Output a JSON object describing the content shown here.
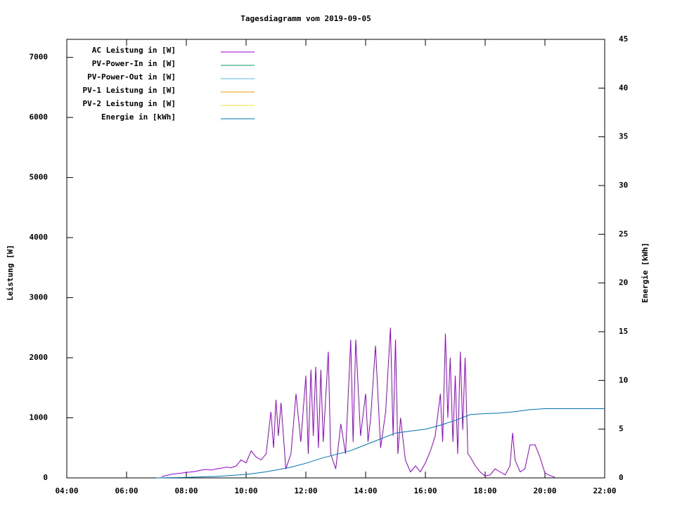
{
  "chart_data": {
    "type": "line",
    "title": "Tagesdiagramm vom 2019-09-05",
    "y_label": "Leistung [W]",
    "y2_label": "Energie [kWh]",
    "legend": "top left",
    "grid": false,
    "xlim": [
      4,
      22
    ],
    "xticks": [
      {
        "value": 4,
        "label": "04:00"
      },
      {
        "value": 6,
        "label": "06:00"
      },
      {
        "value": 8,
        "label": "08:00"
      },
      {
        "value": 10,
        "label": "10:00"
      },
      {
        "value": 12,
        "label": "12:00"
      },
      {
        "value": 14,
        "label": "14:00"
      },
      {
        "value": 16,
        "label": "16:00"
      },
      {
        "value": 18,
        "label": "18:00"
      },
      {
        "value": 20,
        "label": "20:00"
      },
      {
        "value": 22,
        "label": "22:00"
      }
    ],
    "ylim": [
      0,
      7300
    ],
    "yticks": [
      0,
      1000,
      2000,
      3000,
      4000,
      5000,
      6000,
      7000
    ],
    "y2lim": [
      0,
      45
    ],
    "y2ticks": [
      0,
      5,
      10,
      15,
      20,
      25,
      30,
      35,
      40,
      45
    ],
    "series": [
      {
        "name": "AC Leistung in [W]",
        "color": "#9400d3",
        "x": [
          7.17,
          7.33,
          7.5,
          7.67,
          7.83,
          8.0,
          8.17,
          8.33,
          8.5,
          8.67,
          8.83,
          9.0,
          9.17,
          9.33,
          9.5,
          9.67,
          9.83,
          10.0,
          10.17,
          10.33,
          10.5,
          10.67,
          10.83,
          10.92,
          11.0,
          11.08,
          11.17,
          11.33,
          11.5,
          11.67,
          11.83,
          12.0,
          12.08,
          12.17,
          12.25,
          12.33,
          12.42,
          12.5,
          12.58,
          12.75,
          12.83,
          13.0,
          13.17,
          13.33,
          13.5,
          13.58,
          13.67,
          13.83,
          14.0,
          14.08,
          14.17,
          14.33,
          14.5,
          14.67,
          14.83,
          14.92,
          15.0,
          15.08,
          15.17,
          15.33,
          15.5,
          15.67,
          15.83,
          16.0,
          16.17,
          16.33,
          16.5,
          16.58,
          16.67,
          16.75,
          16.83,
          16.92,
          17.0,
          17.08,
          17.17,
          17.25,
          17.33,
          17.42,
          17.5,
          17.67,
          17.83,
          18.0,
          18.17,
          18.33,
          18.5,
          18.67,
          18.83,
          18.92,
          19.0,
          19.17,
          19.33,
          19.5,
          19.67,
          19.83,
          20.0,
          20.17,
          20.33
        ],
        "values": [
          20,
          40,
          60,
          70,
          80,
          90,
          100,
          110,
          130,
          140,
          130,
          150,
          160,
          180,
          170,
          200,
          300,
          250,
          450,
          350,
          300,
          400,
          1100,
          500,
          1300,
          700,
          1250,
          150,
          400,
          1400,
          600,
          1700,
          400,
          1800,
          700,
          1850,
          500,
          1800,
          600,
          2100,
          400,
          150,
          900,
          400,
          2300,
          600,
          2300,
          700,
          1400,
          600,
          1000,
          2200,
          500,
          1100,
          2500,
          700,
          2300,
          400,
          1000,
          300,
          100,
          200,
          100,
          250,
          450,
          700,
          1400,
          600,
          2400,
          1000,
          2000,
          600,
          1700,
          400,
          2100,
          800,
          2000,
          400,
          350,
          200,
          100,
          30,
          50,
          150,
          100,
          50,
          200,
          750,
          300,
          100,
          150,
          550,
          550,
          350,
          80,
          40,
          10
        ]
      },
      {
        "name": "PV-Power-In in [W]",
        "color": "#009e73",
        "x": [],
        "values": []
      },
      {
        "name": "PV-Power-Out in [W]",
        "color": "#56b4e9",
        "x": [],
        "values": []
      },
      {
        "name": "PV-1 Leistung in [W]",
        "color": "#e69f00",
        "x": [],
        "values": []
      },
      {
        "name": "PV-2 Leistung in [W]",
        "color": "#f0e442",
        "x": [],
        "values": []
      },
      {
        "name": "Energie in [kWh]",
        "color": "#0072b2",
        "axis": "y2",
        "x": [
          7.0,
          8.0,
          9.0,
          10.0,
          10.5,
          11.0,
          11.5,
          12.0,
          12.5,
          13.0,
          13.5,
          14.0,
          14.5,
          15.0,
          15.5,
          16.0,
          16.5,
          17.0,
          17.5,
          18.0,
          18.5,
          19.0,
          19.5,
          20.0,
          21.0,
          22.0
        ],
        "values": [
          0,
          0.05,
          0.15,
          0.35,
          0.55,
          0.8,
          1.1,
          1.5,
          2.0,
          2.4,
          2.8,
          3.4,
          4.0,
          4.6,
          4.8,
          5.0,
          5.4,
          5.9,
          6.5,
          6.6,
          6.65,
          6.8,
          7.0,
          7.1,
          7.1,
          7.1
        ]
      }
    ]
  }
}
